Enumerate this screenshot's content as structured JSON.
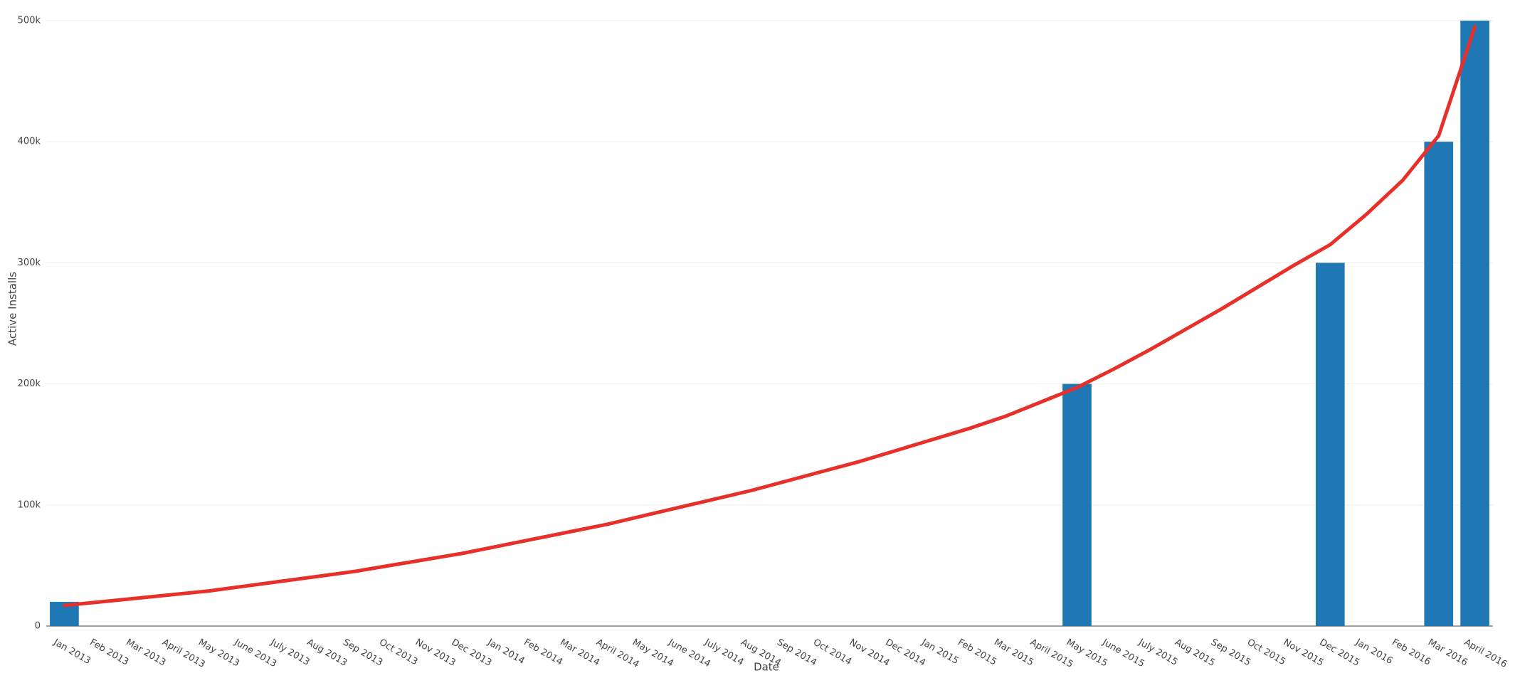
{
  "chart_data": {
    "type": "bar",
    "x_label": "Date",
    "y_label": "Active Installs",
    "categories": [
      "Jan 2013",
      "Feb 2013",
      "Mar 2013",
      "April 2013",
      "May 2013",
      "June 2013",
      "July 2013",
      "Aug 2013",
      "Sep 2013",
      "Oct 2013",
      "Nov 2013",
      "Dec 2013",
      "Jan 2014",
      "Feb 2014",
      "Mar 2014",
      "April 2014",
      "May 2014",
      "June 2014",
      "July 2014",
      "Aug 2014",
      "Sep 2014",
      "Oct 2014",
      "Nov 2014",
      "Dec 2014",
      "Jan 2015",
      "Feb 2015",
      "Mar 2015",
      "April 2015",
      "May 2015",
      "June 2015",
      "July 2015",
      "Aug 2015",
      "Sep 2015",
      "Oct 2015",
      "Nov 2015",
      "Dec 2015",
      "Jan 2016",
      "Feb 2016",
      "Mar 2016",
      "April 2016"
    ],
    "series": [
      {
        "type": "bar",
        "color": "#1f77b4",
        "values": [
          20000,
          null,
          null,
          null,
          null,
          null,
          null,
          null,
          null,
          null,
          null,
          null,
          null,
          null,
          null,
          null,
          null,
          null,
          null,
          null,
          null,
          null,
          null,
          null,
          null,
          null,
          null,
          null,
          200000,
          null,
          null,
          null,
          null,
          null,
          null,
          300000,
          null,
          null,
          400000,
          500000
        ]
      },
      {
        "type": "line",
        "color": "#e8302a",
        "values": [
          17000,
          20000,
          23000,
          26000,
          29000,
          33000,
          37000,
          41000,
          45000,
          50000,
          55000,
          60000,
          66000,
          72000,
          78000,
          84000,
          91000,
          98000,
          105000,
          112000,
          120000,
          128000,
          136000,
          145000,
          154000,
          163000,
          173000,
          185000,
          197000,
          212000,
          228000,
          245000,
          262000,
          280000,
          298000,
          315000,
          340000,
          368000,
          405000,
          495000
        ]
      }
    ],
    "ylim": [
      0,
      500000
    ],
    "yticks": [
      0,
      {
        "value": 100000,
        "label": "100k"
      },
      {
        "value": 200000,
        "label": "200k"
      },
      {
        "value": 300000,
        "label": "300k"
      },
      {
        "value": 400000,
        "label": "400k"
      },
      {
        "value": 500000,
        "label": "500k"
      }
    ],
    "grid": true
  }
}
